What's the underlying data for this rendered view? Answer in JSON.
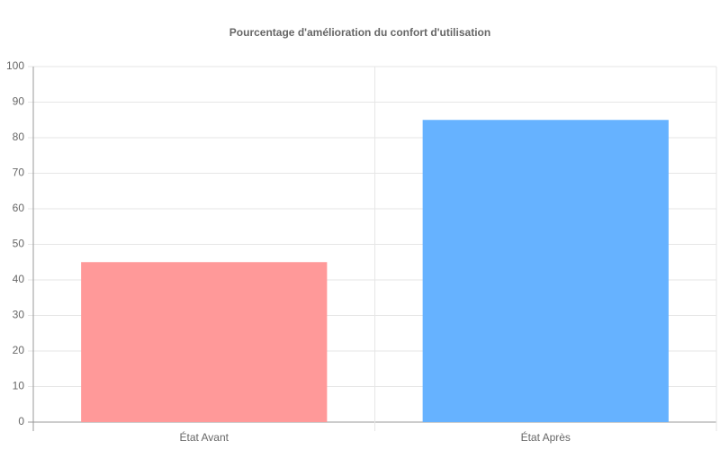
{
  "chart_data": {
    "type": "bar",
    "title": "Pourcentage d'amélioration du confort d'utilisation",
    "categories": [
      "État Avant",
      "État Après"
    ],
    "values": [
      45,
      85
    ],
    "colors": [
      "#ff9999",
      "#66b2ff"
    ],
    "ylim": [
      0,
      100
    ],
    "yticks": [
      0,
      10,
      20,
      30,
      40,
      50,
      60,
      70,
      80,
      90,
      100
    ],
    "grid": true
  }
}
